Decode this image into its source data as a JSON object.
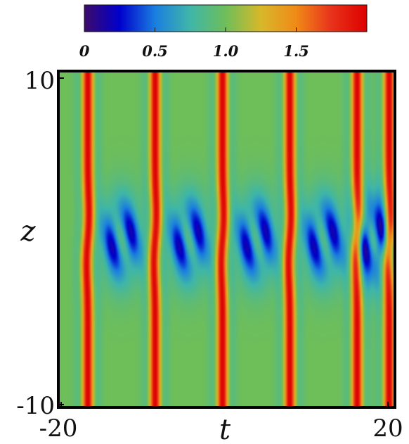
{
  "chart_data": {
    "type": "heatmap",
    "title": "",
    "xlabel": "t",
    "ylabel": "z",
    "xlim": [
      -20,
      20
    ],
    "ylim": [
      -10,
      10
    ],
    "x_tick_labels": [
      "-20",
      "20"
    ],
    "y_tick_labels": [
      "10",
      "-10"
    ],
    "colorbar": {
      "range": [
        0,
        2
      ],
      "tick_values": [
        0,
        0.5,
        1.0,
        1.5
      ],
      "tick_labels": [
        "0",
        "0.5",
        "1.0",
        "1.5"
      ],
      "colors": [
        "#3d0b6b",
        "#0000cc",
        "#1a7ee0",
        "#3fb6a8",
        "#6ebe5a",
        "#d8b82a",
        "#f08a18",
        "#e8321a",
        "#dd0000"
      ],
      "placement": "top"
    },
    "background_value": 1.0,
    "peak_ridges_t": [
      -16.5,
      -8.5,
      -0.5,
      7.5,
      15.5,
      19.3
    ],
    "peak_value": 2.0,
    "localized_region_z": 0,
    "localized_min_value": 0.3
  }
}
